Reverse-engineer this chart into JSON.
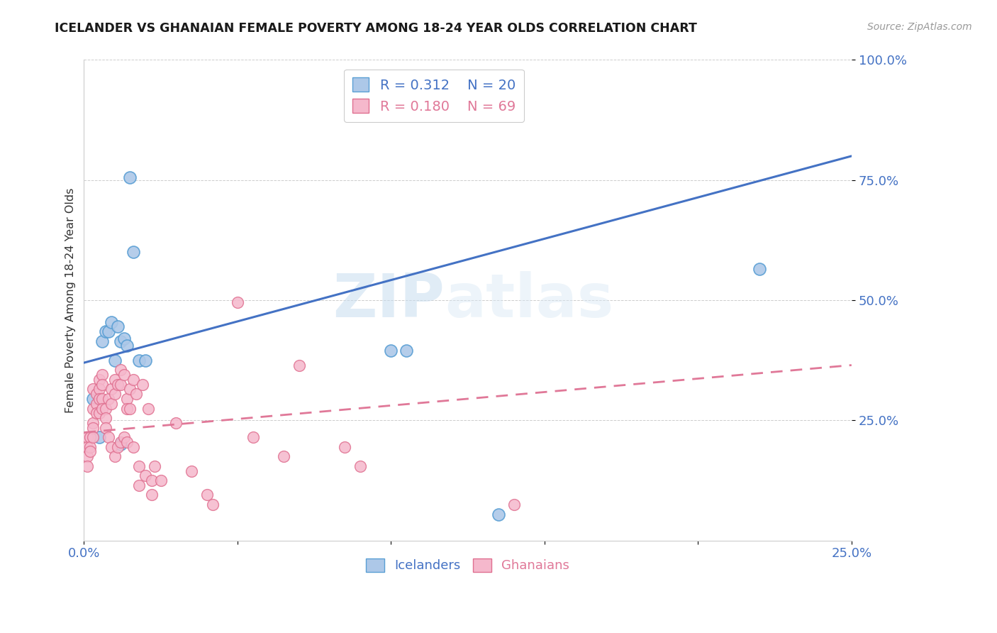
{
  "title": "ICELANDER VS GHANAIAN FEMALE POVERTY AMONG 18-24 YEAR OLDS CORRELATION CHART",
  "source": "Source: ZipAtlas.com",
  "ylabel": "Female Poverty Among 18-24 Year Olds",
  "xlim": [
    0,
    0.25
  ],
  "ylim": [
    0,
    1.0
  ],
  "xticks": [
    0.0,
    0.05,
    0.1,
    0.15,
    0.2,
    0.25
  ],
  "yticks": [
    0.25,
    0.5,
    0.75,
    1.0
  ],
  "ytick_labels": [
    "25.0%",
    "50.0%",
    "75.0%",
    "100.0%"
  ],
  "xtick_labels": [
    "0.0%",
    "",
    "",
    "",
    "",
    "25.0%"
  ],
  "icelanders_color": "#adc8e8",
  "icelanders_edge_color": "#5a9fd4",
  "ghanaians_color": "#f5b8cc",
  "ghanaians_edge_color": "#e07090",
  "trend_blue_color": "#4472c4",
  "trend_pink_color": "#e07898",
  "legend_r_blue": "R = 0.312",
  "legend_n_blue": "N = 20",
  "legend_r_pink": "R = 0.180",
  "legend_n_pink": "N = 69",
  "watermark_zip": "ZIP",
  "watermark_atlas": "atlas",
  "icelanders_x": [
    0.003,
    0.005,
    0.006,
    0.007,
    0.008,
    0.009,
    0.01,
    0.011,
    0.012,
    0.012,
    0.013,
    0.014,
    0.015,
    0.016,
    0.018,
    0.02,
    0.1,
    0.105,
    0.135,
    0.22
  ],
  "icelanders_y": [
    0.295,
    0.215,
    0.415,
    0.435,
    0.435,
    0.455,
    0.375,
    0.445,
    0.2,
    0.415,
    0.42,
    0.405,
    0.755,
    0.6,
    0.375,
    0.375,
    0.395,
    0.395,
    0.055,
    0.565
  ],
  "ghanaians_x": [
    0.001,
    0.001,
    0.001,
    0.001,
    0.002,
    0.002,
    0.002,
    0.003,
    0.003,
    0.003,
    0.003,
    0.003,
    0.004,
    0.004,
    0.004,
    0.005,
    0.005,
    0.005,
    0.005,
    0.006,
    0.006,
    0.006,
    0.006,
    0.007,
    0.007,
    0.007,
    0.008,
    0.008,
    0.009,
    0.009,
    0.009,
    0.01,
    0.01,
    0.01,
    0.011,
    0.011,
    0.012,
    0.012,
    0.012,
    0.013,
    0.013,
    0.014,
    0.014,
    0.014,
    0.015,
    0.015,
    0.016,
    0.016,
    0.017,
    0.018,
    0.018,
    0.019,
    0.02,
    0.021,
    0.022,
    0.022,
    0.023,
    0.025,
    0.03,
    0.035,
    0.04,
    0.042,
    0.05,
    0.055,
    0.065,
    0.07,
    0.085,
    0.09,
    0.14
  ],
  "ghanaians_y": [
    0.215,
    0.195,
    0.175,
    0.155,
    0.215,
    0.195,
    0.185,
    0.315,
    0.275,
    0.245,
    0.235,
    0.215,
    0.305,
    0.285,
    0.265,
    0.335,
    0.315,
    0.295,
    0.265,
    0.345,
    0.325,
    0.295,
    0.275,
    0.275,
    0.255,
    0.235,
    0.295,
    0.215,
    0.315,
    0.285,
    0.195,
    0.335,
    0.305,
    0.175,
    0.325,
    0.195,
    0.355,
    0.325,
    0.205,
    0.345,
    0.215,
    0.295,
    0.275,
    0.205,
    0.315,
    0.275,
    0.335,
    0.195,
    0.305,
    0.155,
    0.115,
    0.325,
    0.135,
    0.275,
    0.125,
    0.095,
    0.155,
    0.125,
    0.245,
    0.145,
    0.095,
    0.075,
    0.495,
    0.215,
    0.175,
    0.365,
    0.195,
    0.155,
    0.075
  ],
  "icelanders_trend_x": [
    0.0,
    0.25
  ],
  "icelanders_trend_y": [
    0.37,
    0.8
  ],
  "ghanaians_trend_x": [
    0.0,
    0.25
  ],
  "ghanaians_trend_y": [
    0.225,
    0.365
  ]
}
